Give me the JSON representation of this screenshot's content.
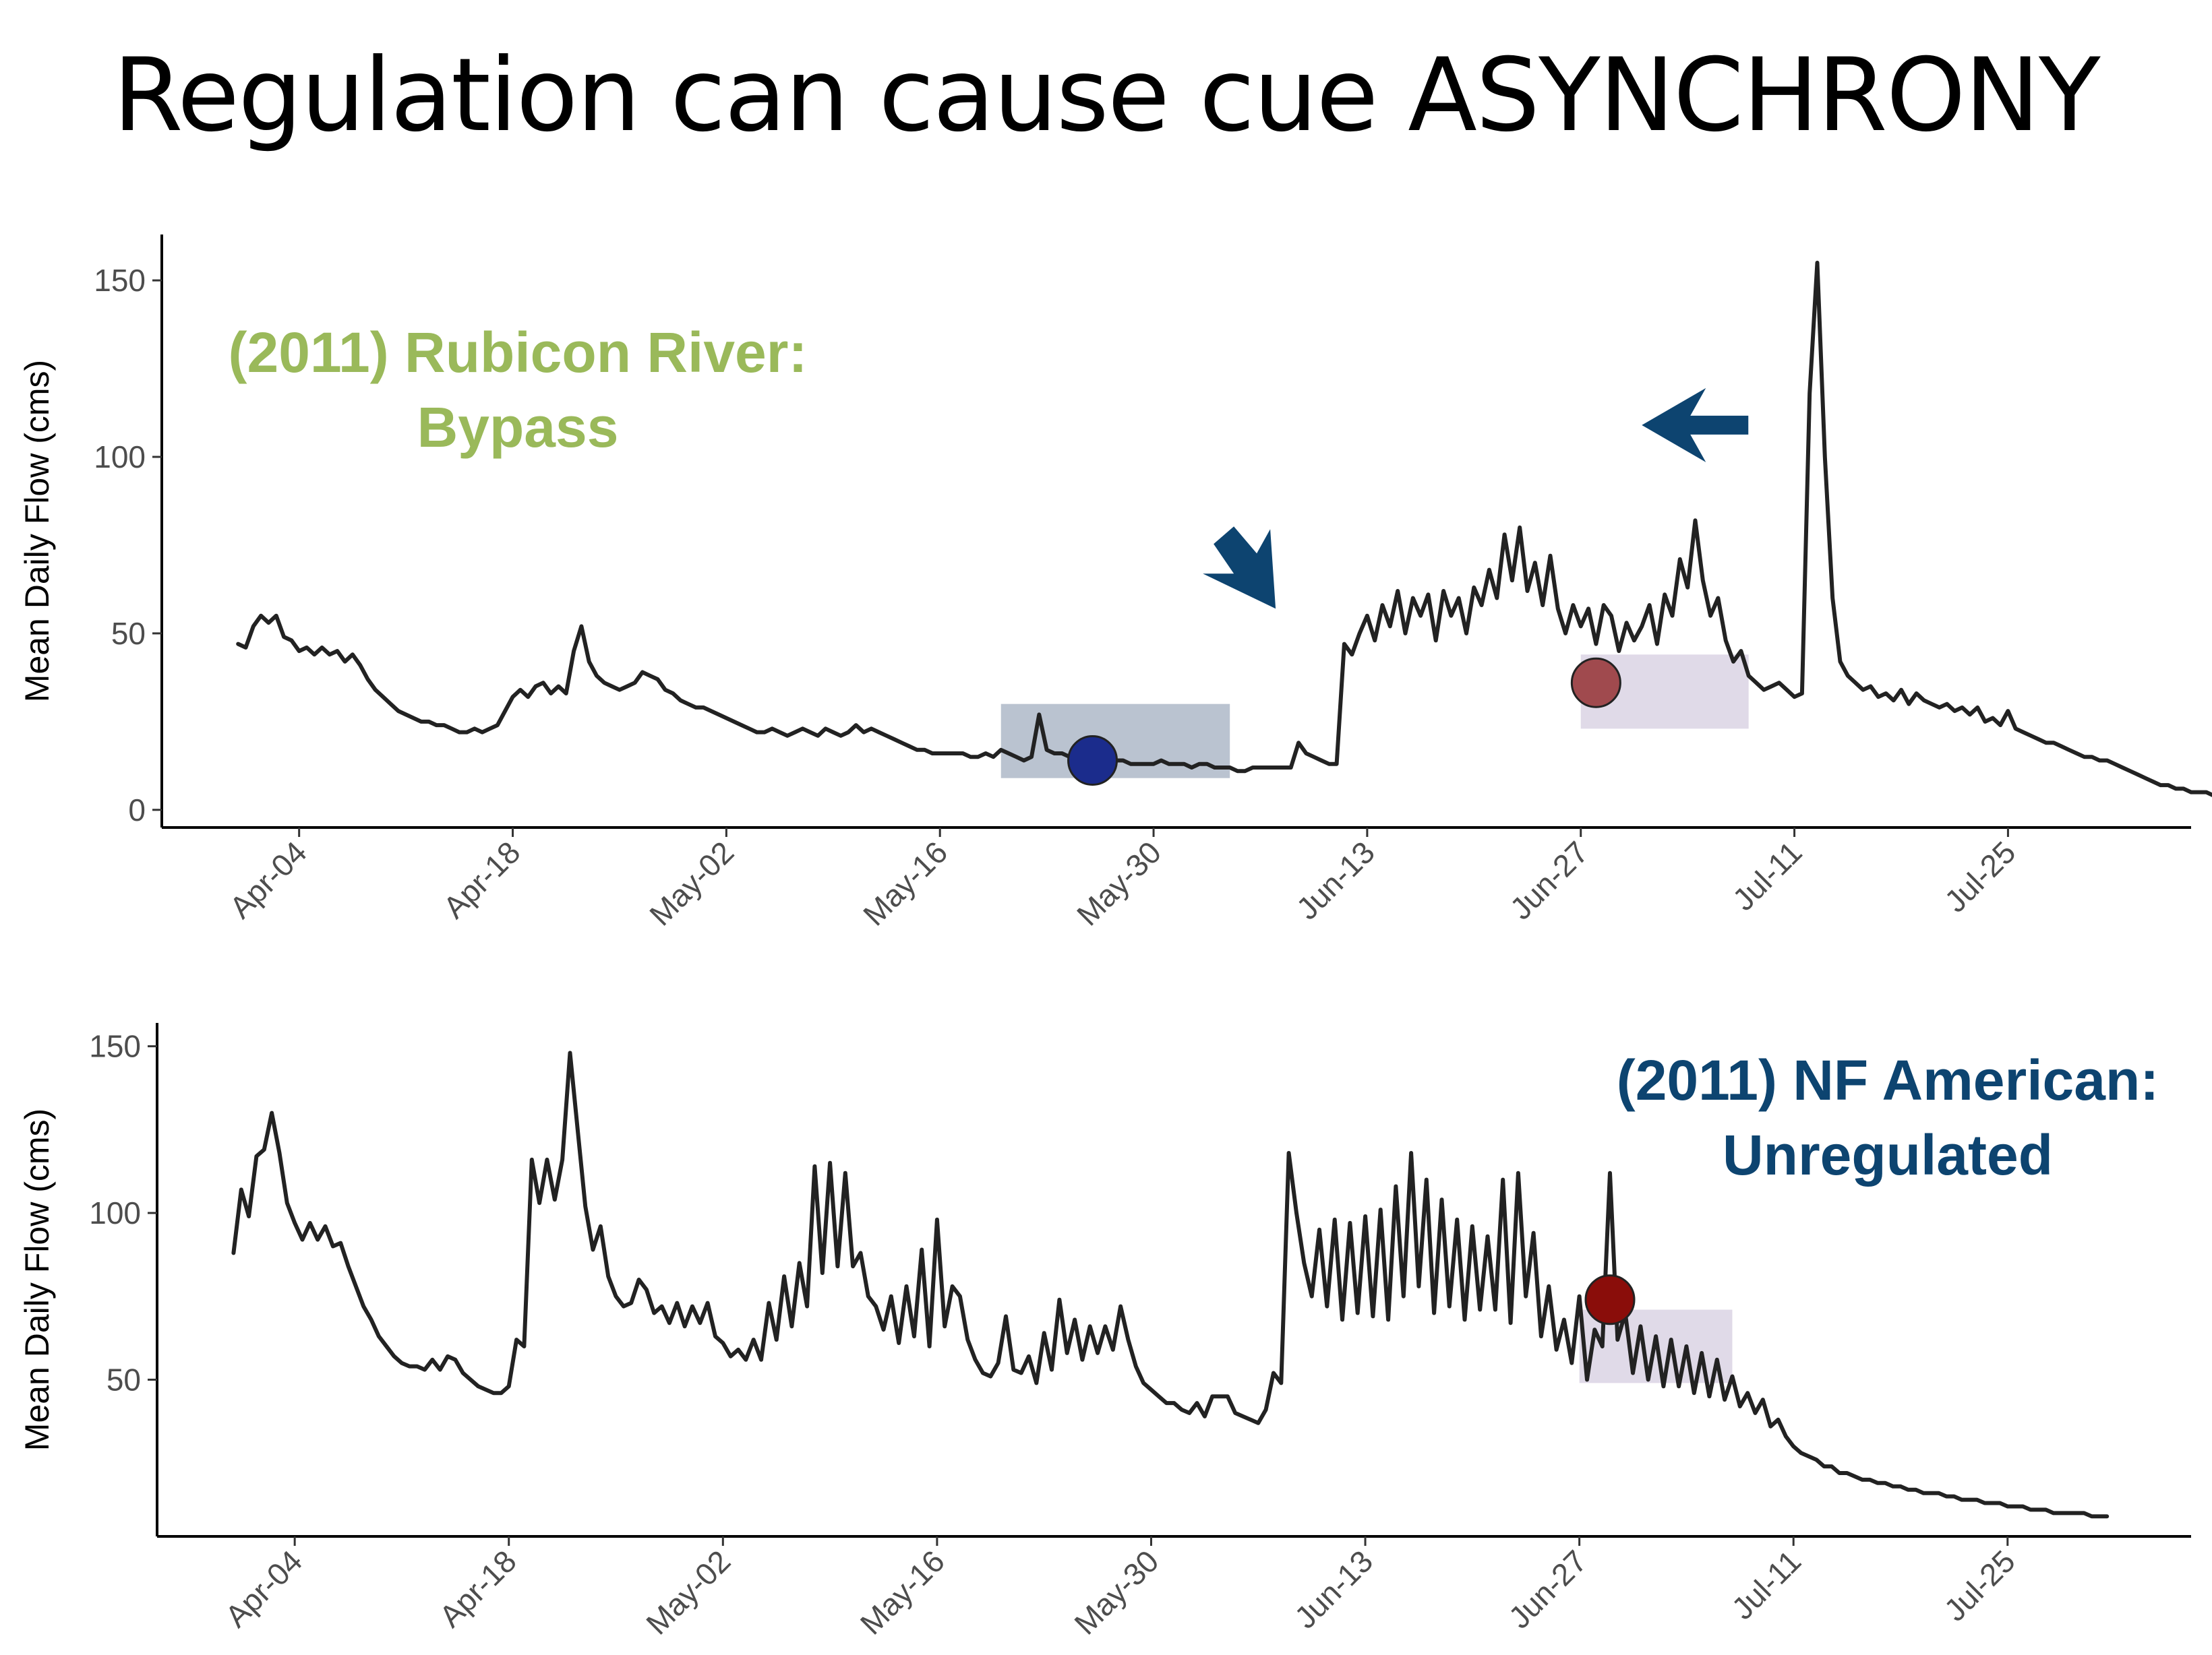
{
  "slide": {
    "title": "Regulation can cause cue ASYNCHRONY"
  },
  "colors": {
    "line": "#222222",
    "rubicon_label": "#9ab95a",
    "nf_label": "#0d4470",
    "arrow": "#0d4470",
    "box_blue": "#b3bccb",
    "box_purple": "#ddd6e6",
    "dot_blue": "#1b2c8c",
    "dot_red_top": "#a04a4e",
    "dot_red_bottom": "#8a0d0a"
  },
  "chart_data": [
    {
      "type": "line",
      "panel": "top",
      "label_lines": [
        "(2011) Rubicon River:",
        "Bypass"
      ],
      "ylabel": "Mean Daily Flow (cms)",
      "xlabel": "",
      "x_ticks": [
        "Apr-04",
        "Apr-18",
        "May-02",
        "May-16",
        "May-30",
        "Jun-13",
        "Jun-27",
        "Jul-11",
        "Jul-25"
      ],
      "y_ticks": [
        0,
        50,
        100,
        150
      ],
      "ylim": [
        -5,
        163
      ],
      "xlim": [
        "2011-03-26",
        "2011-08-06"
      ],
      "series": [
        {
          "x_start": "2011-03-31",
          "values": [
            47,
            46,
            52,
            55,
            53,
            55,
            49,
            48,
            45,
            46,
            44,
            46,
            44,
            45,
            42,
            44,
            41,
            37,
            34,
            32,
            30,
            28,
            27,
            26,
            25,
            25,
            24,
            24,
            23,
            22,
            22,
            23,
            22,
            23,
            24,
            28,
            32,
            34,
            32,
            35,
            36,
            33,
            35,
            33,
            45,
            52,
            42,
            38,
            36,
            35,
            34,
            35,
            36,
            39,
            38,
            37,
            34,
            33,
            31,
            30,
            29,
            29,
            28,
            27,
            26,
            25,
            24,
            23,
            22,
            22,
            23,
            22,
            21,
            22,
            23,
            22,
            21,
            23,
            22,
            21,
            22,
            24,
            22,
            23,
            22,
            21,
            20,
            19,
            18,
            17,
            17,
            16,
            16,
            16,
            16,
            16,
            15,
            15,
            16,
            15,
            17,
            16,
            15,
            14,
            15,
            27,
            17,
            16,
            16,
            15,
            15,
            15,
            14,
            14,
            14,
            14,
            14,
            13,
            13,
            13,
            13,
            14,
            13,
            13,
            13,
            12,
            13,
            13,
            12,
            12,
            12,
            11,
            11,
            12,
            12,
            12,
            12,
            12,
            12,
            19,
            16,
            15,
            14,
            13,
            13,
            47,
            44,
            50,
            55,
            48,
            58,
            52,
            62,
            50,
            60,
            55,
            61,
            48,
            62,
            55,
            60,
            50,
            63,
            58,
            68,
            60,
            78,
            65,
            80,
            62,
            70,
            58,
            72,
            57,
            50,
            58,
            52,
            57,
            47,
            58,
            55,
            45,
            53,
            48,
            52,
            58,
            47,
            61,
            55,
            71,
            63,
            82,
            65,
            55,
            60,
            48,
            42,
            45,
            38,
            36,
            34,
            35,
            36,
            34,
            32,
            33,
            118,
            155,
            100,
            60,
            42,
            38,
            36,
            34,
            35,
            32,
            33,
            31,
            34,
            30,
            33,
            31,
            30,
            29,
            30,
            28,
            29,
            27,
            29,
            25,
            26,
            24,
            28,
            23,
            22,
            21,
            20,
            19,
            19,
            18,
            17,
            16,
            15,
            15,
            14,
            14,
            13,
            12,
            11,
            10,
            9,
            8,
            7,
            7,
            6,
            6,
            5,
            5,
            5,
            4,
            4,
            4,
            4,
            4,
            4,
            4,
            4,
            4,
            4,
            4,
            4,
            4,
            4,
            4,
            3,
            3,
            3,
            3,
            3,
            3,
            3,
            3,
            3,
            3,
            3,
            3,
            3,
            3,
            3,
            3,
            3,
            3,
            3,
            3,
            3,
            3,
            3,
            3,
            3,
            3,
            3,
            3,
            3,
            3,
            2,
            2,
            2,
            2,
            2,
            2,
            2,
            2,
            2,
            2,
            2,
            2,
            2,
            2,
            2,
            2
          ]
        }
      ],
      "annotations": {
        "boxes": [
          {
            "x_start": "2011-05-20",
            "x_end": "2011-06-04",
            "y_start": 9,
            "y_end": 30,
            "color": "box_blue"
          },
          {
            "x_start": "2011-06-27",
            "x_end": "2011-07-08",
            "y_start": 23,
            "y_end": 44,
            "color": "box_purple"
          }
        ],
        "points": [
          {
            "x": "2011-05-26",
            "y": 14,
            "color": "dot_blue"
          },
          {
            "x": "2011-06-28",
            "y": 36,
            "color": "dot_red_top"
          }
        ],
        "arrows": [
          {
            "tip_x": "2011-06-07",
            "tip_y": 57,
            "direction": "down-right"
          },
          {
            "tip_x": "2011-07-01",
            "tip_y": 109,
            "direction": "left"
          }
        ]
      }
    },
    {
      "type": "line",
      "panel": "bottom",
      "label_lines": [
        "(2011) NF American:",
        "Unregulated"
      ],
      "ylabel": "Mean Daily Flow (cms)",
      "xlabel": "",
      "x_ticks": [
        "Apr-04",
        "Apr-18",
        "May-02",
        "May-16",
        "May-30",
        "Jun-13",
        "Jun-27",
        "Jul-11",
        "Jul-25"
      ],
      "y_ticks": [
        50,
        100,
        150
      ],
      "ylim": [
        3,
        157
      ],
      "xlim": [
        "2011-03-26",
        "2011-08-06"
      ],
      "series": [
        {
          "x_start": "2011-03-31",
          "values": [
            88,
            107,
            99,
            117,
            119,
            130,
            118,
            103,
            97,
            92,
            97,
            92,
            96,
            90,
            91,
            84,
            78,
            72,
            68,
            63,
            60,
            57,
            55,
            54,
            54,
            53,
            56,
            53,
            57,
            56,
            52,
            50,
            48,
            47,
            46,
            46,
            48,
            62,
            60,
            116,
            103,
            116,
            104,
            116,
            148,
            125,
            102,
            89,
            96,
            81,
            75,
            72,
            73,
            80,
            77,
            70,
            72,
            67,
            73,
            66,
            72,
            67,
            73,
            63,
            61,
            57,
            59,
            56,
            62,
            56,
            73,
            62,
            81,
            66,
            85,
            72,
            114,
            82,
            115,
            84,
            112,
            84,
            88,
            75,
            72,
            65,
            75,
            61,
            78,
            63,
            89,
            60,
            98,
            66,
            78,
            75,
            62,
            56,
            52,
            51,
            55,
            69,
            53,
            52,
            57,
            49,
            64,
            53,
            74,
            58,
            68,
            56,
            66,
            58,
            66,
            59,
            72,
            62,
            54,
            49,
            47,
            45,
            43,
            43,
            41,
            40,
            43,
            39,
            45,
            45,
            45,
            40,
            39,
            38,
            37,
            41,
            52,
            49,
            118,
            100,
            85,
            75,
            95,
            72,
            98,
            68,
            97,
            70,
            99,
            69,
            101,
            68,
            108,
            75,
            118,
            78,
            110,
            70,
            104,
            72,
            98,
            68,
            96,
            71,
            93,
            71,
            110,
            67,
            112,
            75,
            94,
            63,
            78,
            59,
            68,
            55,
            75,
            50,
            65,
            60,
            112,
            62,
            70,
            52,
            66,
            50,
            63,
            48,
            62,
            48,
            60,
            46,
            58,
            45,
            56,
            44,
            51,
            42,
            46,
            40,
            44,
            36,
            38,
            33,
            30,
            28,
            27,
            26,
            24,
            24,
            22,
            22,
            21,
            20,
            20,
            19,
            19,
            18,
            18,
            17,
            17,
            16,
            16,
            16,
            15,
            15,
            14,
            14,
            14,
            13,
            13,
            13,
            12,
            12,
            12,
            11,
            11,
            11,
            10,
            10,
            10,
            10,
            10,
            9,
            9,
            9
          ]
        }
      ],
      "annotations": {
        "boxes": [
          {
            "x_start": "2011-06-27",
            "x_end": "2011-07-07",
            "y_start": 49,
            "y_end": 71,
            "color": "box_purple"
          }
        ],
        "points": [
          {
            "x": "2011-06-29",
            "y": 74,
            "color": "dot_red_bottom"
          }
        ]
      }
    }
  ]
}
